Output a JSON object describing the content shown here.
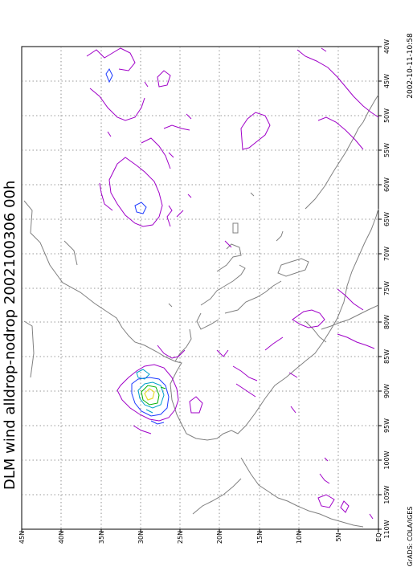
{
  "title": "DLM wind alldrop-nodrop 2002100306 00h",
  "timestamp": "2002-10-11-10:58",
  "credit": "GrADS: COLA/IGES",
  "longitude_labels": [
    "40W",
    "45W",
    "50W",
    "55W",
    "60W",
    "65W",
    "70W",
    "75W",
    "80W",
    "85W",
    "90W",
    "95W",
    "100W",
    "105W",
    "110W"
  ],
  "latitude_labels": [
    "EQ",
    "5N",
    "10N",
    "15N",
    "20N",
    "25N",
    "30N",
    "35N",
    "40N",
    "45N"
  ],
  "map": {
    "projection": "lat-lon, rotated 90 degrees",
    "lon_range_deg_west": [
      40,
      110
    ],
    "lat_range_deg_north": [
      0,
      45
    ],
    "gridlines": "dotted",
    "coastline_color": "#808080"
  },
  "contour_colors": {
    "purple": "#a000c8",
    "blue": "#1e3cff",
    "cyan": "#00a0c8",
    "green": "#00b000",
    "yellow": "#e6dc32"
  }
}
